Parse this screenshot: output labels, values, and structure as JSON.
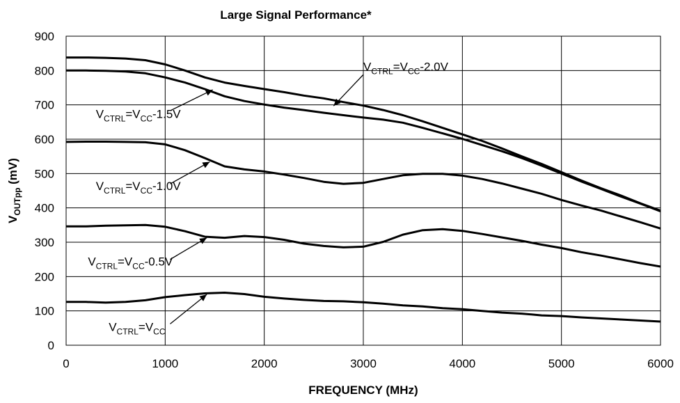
{
  "chart_data": {
    "type": "line",
    "title": "Large Signal Performance*",
    "xlabel": "FREQUENCY (MHz)",
    "ylabel": {
      "main": "V",
      "sub": "OUTpp",
      "rest": " (mV)"
    },
    "xlim": [
      0,
      6000
    ],
    "ylim": [
      0,
      900
    ],
    "xticks": [
      0,
      1000,
      2000,
      3000,
      4000,
      5000,
      6000
    ],
    "yticks": [
      0,
      100,
      200,
      300,
      400,
      500,
      600,
      700,
      800,
      900
    ],
    "grid": true,
    "legend": "none",
    "series": [
      {
        "name": "VCTRL=VCC-2.0V",
        "x": [
          0,
          200,
          400,
          600,
          800,
          1000,
          1200,
          1400,
          1600,
          1800,
          2000,
          2200,
          2400,
          2600,
          2800,
          3000,
          3200,
          3400,
          3600,
          3800,
          4000,
          4200,
          4400,
          4600,
          4800,
          5000,
          5200,
          5400,
          5600,
          5800,
          6000
        ],
        "y": [
          838,
          838,
          837,
          835,
          830,
          818,
          800,
          780,
          765,
          755,
          746,
          737,
          727,
          719,
          708,
          698,
          685,
          670,
          652,
          633,
          614,
          595,
          573,
          550,
          528,
          504,
          480,
          457,
          436,
          413,
          392
        ]
      },
      {
        "name": "VCTRL=VCC-1.5V",
        "x": [
          0,
          200,
          400,
          600,
          800,
          1000,
          1200,
          1400,
          1600,
          1800,
          2000,
          2200,
          2400,
          2600,
          2800,
          3000,
          3200,
          3400,
          3600,
          3800,
          4000,
          4200,
          4400,
          4600,
          4800,
          5000,
          5200,
          5400,
          5600,
          5800,
          6000
        ],
        "y": [
          800,
          800,
          799,
          797,
          792,
          780,
          765,
          746,
          725,
          711,
          701,
          692,
          685,
          677,
          670,
          663,
          657,
          648,
          633,
          617,
          601,
          583,
          565,
          545,
          523,
          500,
          477,
          455,
          433,
          412,
          390
        ]
      },
      {
        "name": "VCTRL=VCC-1.0V",
        "x": [
          0,
          200,
          400,
          600,
          800,
          1000,
          1200,
          1400,
          1600,
          1800,
          2000,
          2200,
          2400,
          2600,
          2800,
          3000,
          3200,
          3400,
          3600,
          3800,
          4000,
          4200,
          4400,
          4600,
          4800,
          5000,
          5200,
          5400,
          5600,
          5800,
          6000
        ],
        "y": [
          592,
          593,
          593,
          592,
          591,
          585,
          568,
          545,
          521,
          512,
          506,
          497,
          487,
          476,
          470,
          473,
          484,
          495,
          499,
          499,
          494,
          484,
          471,
          456,
          441,
          423,
          407,
          392,
          375,
          358,
          340
        ]
      },
      {
        "name": "VCTRL=VCC-0.5V",
        "x": [
          0,
          200,
          400,
          600,
          800,
          1000,
          1200,
          1400,
          1600,
          1800,
          2000,
          2200,
          2400,
          2600,
          2800,
          3000,
          3200,
          3400,
          3600,
          3800,
          4000,
          4200,
          4400,
          4600,
          4800,
          5000,
          5200,
          5400,
          5600,
          5800,
          6000
        ],
        "y": [
          346,
          346,
          348,
          349,
          350,
          345,
          332,
          316,
          313,
          318,
          315,
          307,
          296,
          289,
          285,
          287,
          301,
          322,
          335,
          338,
          333,
          324,
          314,
          304,
          293,
          283,
          271,
          261,
          250,
          239,
          229
        ]
      },
      {
        "name": "VCTRL=VCC",
        "x": [
          0,
          200,
          400,
          600,
          800,
          1000,
          1200,
          1400,
          1600,
          1800,
          2000,
          2200,
          2400,
          2600,
          2800,
          3000,
          3200,
          3400,
          3600,
          3800,
          4000,
          4200,
          4400,
          4600,
          4800,
          5000,
          5200,
          5400,
          5600,
          5800,
          6000
        ],
        "y": [
          126,
          126,
          124,
          126,
          131,
          140,
          146,
          151,
          153,
          149,
          141,
          136,
          132,
          129,
          128,
          125,
          121,
          116,
          113,
          108,
          105,
          100,
          95,
          92,
          87,
          85,
          81,
          78,
          75,
          72,
          69
        ]
      }
    ],
    "annotations": [
      {
        "parts": [
          [
            "V",
            ""
          ],
          [
            "CTRL",
            "sub"
          ],
          [
            "=V",
            ""
          ],
          [
            "CC",
            "sub"
          ],
          [
            "-2.0V",
            ""
          ]
        ],
        "text_at": [
          3000,
          800
        ],
        "arrow_tail": [
          3000,
          788
        ],
        "arrow_head": [
          2700,
          697
        ]
      },
      {
        "parts": [
          [
            "V",
            ""
          ],
          [
            "CTRL",
            "sub"
          ],
          [
            "=V",
            ""
          ],
          [
            "CC",
            "sub"
          ],
          [
            "-1.5V",
            ""
          ]
        ],
        "text_at": [
          300,
          662
        ],
        "arrow_tail": [
          1050,
          683
        ],
        "arrow_head": [
          1480,
          744
        ]
      },
      {
        "parts": [
          [
            "V",
            ""
          ],
          [
            "CTRL",
            "sub"
          ],
          [
            "=V",
            ""
          ],
          [
            "CC",
            "sub"
          ],
          [
            "-1.0V",
            ""
          ]
        ],
        "text_at": [
          300,
          452
        ],
        "arrow_tail": [
          1050,
          470
        ],
        "arrow_head": [
          1450,
          534
        ]
      },
      {
        "parts": [
          [
            "V",
            ""
          ],
          [
            "CTRL",
            "sub"
          ],
          [
            "=V",
            ""
          ],
          [
            "CC",
            "sub"
          ],
          [
            "-0.5V",
            ""
          ]
        ],
        "text_at": [
          220,
          232
        ],
        "arrow_tail": [
          1050,
          250
        ],
        "arrow_head": [
          1420,
          313
        ]
      },
      {
        "parts": [
          [
            "V",
            ""
          ],
          [
            "CTRL",
            "sub"
          ],
          [
            "=V",
            ""
          ],
          [
            "CC",
            "sub"
          ]
        ],
        "text_at": [
          430,
          42
        ],
        "arrow_tail": [
          1050,
          62
        ],
        "arrow_head": [
          1420,
          148
        ]
      }
    ]
  }
}
